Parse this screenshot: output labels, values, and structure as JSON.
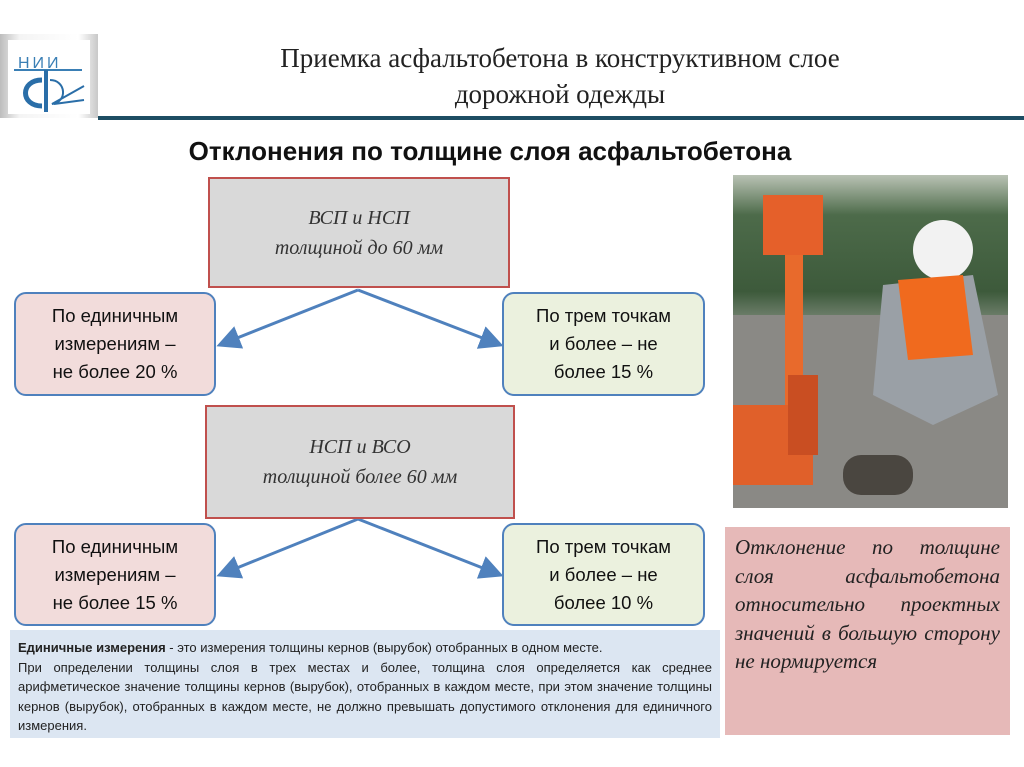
{
  "logo": {
    "text": "НИИ"
  },
  "title": {
    "line1": "Приемка асфальтобетона в конструктивном слое",
    "line2": "дорожной одежды"
  },
  "heading": "Отклонения по толщине слоя асфальтобетона",
  "group1": {
    "header_line1": "ВСП и НСП",
    "header_line2": "толщиной до 60 мм",
    "left": {
      "line1": "По единичным",
      "line2": "измерениям –",
      "line3": "не более 20 %"
    },
    "right": {
      "line1": "По трем точкам",
      "line2": "и более – не",
      "line3": "более 15 %"
    }
  },
  "group2": {
    "header_line1": "НСП и ВСО",
    "header_line2": "толщиной более 60 мм",
    "left": {
      "line1": "По единичным",
      "line2": "измерениям –",
      "line3": "не более 15 %"
    },
    "right": {
      "line1": "По трем точкам",
      "line2": "и более – не",
      "line3": "более 10 %"
    }
  },
  "note": {
    "term": "Единичные измерения",
    "definition": " - это измерения толщины кернов (вырубок) отобранных в одном месте.",
    "paragraph": "При определении толщины слоя в трех местах и более, толщина слоя определяется как среднее арифметическое значение толщины кернов (вырубок), отобранных в каждом месте, при этом значение толщины кернов (вырубок), отобранных в каждом месте, не должно превышать допустимого отклонения для единичного измерения."
  },
  "side_note": "Отклонение по толщине слоя асфальтобетона относительно проектных значений в большую сторону не нормируется",
  "colors": {
    "rule": "#1d4d63",
    "box_border": "#c0504d",
    "rounded_border": "#4f81bd",
    "arrow": "#4f81bd",
    "pink": "#f2dcdb",
    "green": "#ebf1de",
    "note_bg": "#dce6f2",
    "side_bg": "#e6b9b8"
  }
}
